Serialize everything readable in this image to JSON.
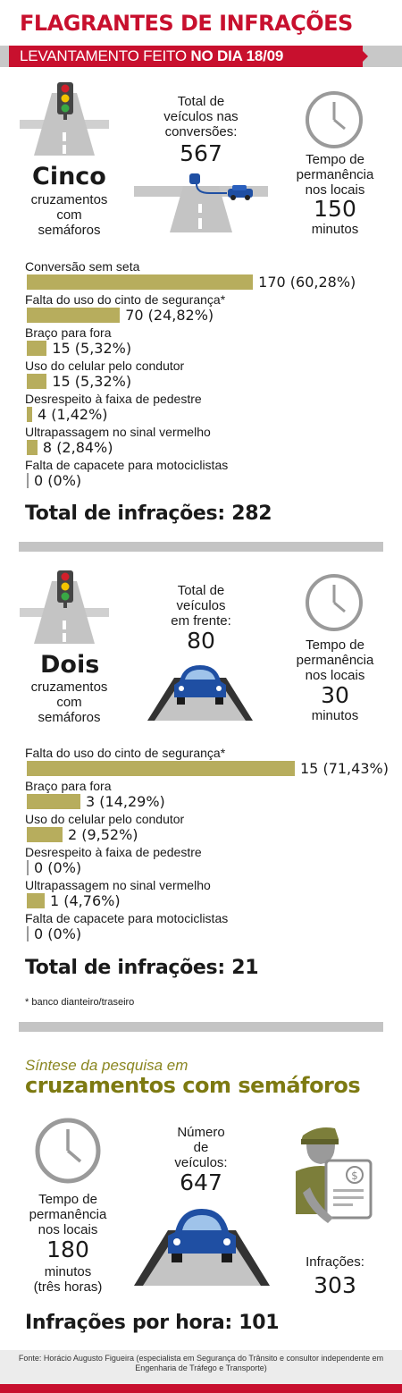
{
  "header": {
    "title": "FLAGRANTES DE INFRAÇÕES",
    "subtitle_prefix": "LEVANTAMENTO FEITO ",
    "subtitle_bold": "NO DIA 18/09"
  },
  "section1": {
    "count_word": "Cinco",
    "count_desc": [
      "cruzamentos",
      "com",
      "semáforos"
    ],
    "vehicles_label": [
      "Total de",
      "veículos nas",
      "conversões:"
    ],
    "vehicles_value": "567",
    "time_label": [
      "Tempo de",
      "permanência",
      "nos locais"
    ],
    "time_value": "150",
    "time_unit": "minutos",
    "rows": [
      {
        "label": "Conversão sem seta",
        "value": "170 (60,28%)",
        "pct": 60.28
      },
      {
        "label": "Falta do uso do cinto de segurança*",
        "value": "70 (24,82%)",
        "pct": 24.82
      },
      {
        "label": "Braço para fora",
        "value": "15 (5,32%)",
        "pct": 5.32
      },
      {
        "label": "Uso do celular pelo condutor",
        "value": "15 (5,32%)",
        "pct": 5.32
      },
      {
        "label": "Desrespeito à faixa de pedestre",
        "value": "4 (1,42%)",
        "pct": 1.42
      },
      {
        "label": "Ultrapassagem no sinal vermelho",
        "value": "8 (2,84%)",
        "pct": 2.84
      },
      {
        "label": "Falta de capacete para motociclistas",
        "value": "0 (0%)",
        "pct": 0
      }
    ],
    "total": "Total de infrações: 282"
  },
  "section2": {
    "count_word": "Dois",
    "count_desc": [
      "cruzamentos",
      "com",
      "semáforos"
    ],
    "vehicles_label": [
      "Total de",
      "veículos",
      "em frente:"
    ],
    "vehicles_value": "80",
    "time_label": [
      "Tempo de",
      "permanência",
      "nos locais"
    ],
    "time_value": "30",
    "time_unit": "minutos",
    "rows": [
      {
        "label": "Falta do uso do cinto de segurança*",
        "value": "15 (71,43%)",
        "pct": 71.43
      },
      {
        "label": "Braço para fora",
        "value": "3 (14,29%)",
        "pct": 14.29
      },
      {
        "label": "Uso do celular pelo condutor",
        "value": "2 (9,52%)",
        "pct": 9.52
      },
      {
        "label": "Desrespeito à faixa de pedestre",
        "value": "0 (0%)",
        "pct": 0
      },
      {
        "label": "Ultrapassagem no sinal vermelho",
        "value": "1 (4,76%)",
        "pct": 4.76
      },
      {
        "label": "Falta de capacete para motociclistas",
        "value": "0 (0%)",
        "pct": 0
      }
    ],
    "total": "Total de infrações: 21"
  },
  "footnote": "* banco dianteiro/traseiro",
  "synthesis": {
    "title_small": "Síntese da pesquisa em",
    "title_big": "cruzamentos com semáforos",
    "time_label": [
      "Tempo de",
      "permanência",
      "nos locais"
    ],
    "time_value": "180",
    "time_unit": [
      "minutos",
      "(três horas)"
    ],
    "vehicles_label": [
      "Número",
      "de",
      "veículos:"
    ],
    "vehicles_value": "647",
    "infractions_label": "Infrações:",
    "infractions_value": "303",
    "per_hour": "Infrações por hora: 101"
  },
  "source": "Fonte: Horácio Augusto Figueira (especialista em Segurança do Trânsito e consultor independente em Engenharia de Tráfego e Transporte)",
  "colors": {
    "red": "#c8102e",
    "bar": "#b7ad5d",
    "olive": "#7d7a12",
    "gray": "#c4c4c4",
    "car": "#1f4fa3"
  },
  "icons": [
    "traffic-light-icon",
    "road-icon",
    "clock-icon",
    "car-icon",
    "police-officer-icon",
    "ticket-icon"
  ]
}
